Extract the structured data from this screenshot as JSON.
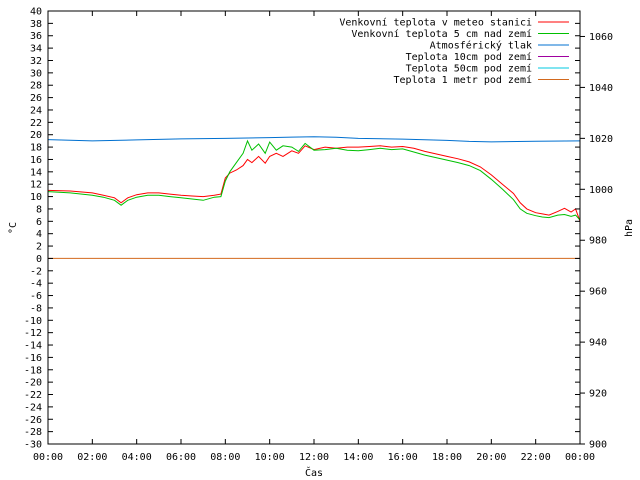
{
  "chart_data": {
    "type": "line",
    "xlabel": "Čas",
    "ylabel_left": "°C",
    "ylabel_right": "hPa",
    "ylim_left": [
      -30,
      40
    ],
    "ylim_right": [
      900,
      1070
    ],
    "yticks_left": [
      40,
      38,
      36,
      34,
      32,
      30,
      28,
      26,
      24,
      22,
      20,
      18,
      16,
      14,
      12,
      10,
      8,
      6,
      4,
      2,
      0,
      -2,
      -4,
      -6,
      -8,
      -10,
      -12,
      -14,
      -16,
      -18,
      -20,
      -22,
      -24,
      -26,
      -28,
      -30
    ],
    "yticks_right": [
      1060,
      1040,
      1020,
      1000,
      980,
      960,
      940,
      920,
      900
    ],
    "xlim_hours": [
      0,
      24
    ],
    "xticks": [
      "00:00",
      "02:00",
      "04:00",
      "06:00",
      "08:00",
      "10:00",
      "12:00",
      "14:00",
      "16:00",
      "18:00",
      "20:00",
      "22:00",
      "00:00"
    ],
    "grid": false,
    "legend_position": "top-right",
    "series": [
      {
        "name": "Venkovní teplota v meteo stanici",
        "color": "#ff0000",
        "axis": "left",
        "hours": [
          0,
          1,
          2,
          2.5,
          3,
          3.3,
          3.6,
          4,
          4.5,
          5,
          5.5,
          6,
          6.5,
          7,
          7.5,
          7.8,
          8,
          8.2,
          8.5,
          8.8,
          9,
          9.2,
          9.5,
          9.8,
          10,
          10.3,
          10.6,
          11,
          11.3,
          11.6,
          12,
          12.5,
          13,
          13.5,
          14,
          14.5,
          15,
          15.5,
          16,
          16.5,
          17,
          17.5,
          18,
          18.5,
          19,
          19.5,
          20,
          20.5,
          21,
          21.3,
          21.6,
          22,
          22.3,
          22.6,
          23,
          23.3,
          23.6,
          23.8,
          24
        ],
        "values": [
          11.0,
          10.9,
          10.6,
          10.2,
          9.8,
          9.0,
          9.8,
          10.3,
          10.6,
          10.6,
          10.4,
          10.2,
          10.1,
          10.0,
          10.2,
          10.4,
          13.0,
          13.8,
          14.3,
          15.0,
          16.0,
          15.5,
          16.5,
          15.4,
          16.5,
          17.0,
          16.5,
          17.4,
          17.0,
          18.2,
          17.6,
          18.0,
          17.8,
          18.0,
          18.0,
          18.1,
          18.2,
          18.0,
          18.1,
          17.8,
          17.3,
          16.9,
          16.5,
          16.1,
          15.6,
          14.8,
          13.5,
          12.0,
          10.5,
          9.0,
          8.0,
          7.4,
          7.2,
          7.0,
          7.6,
          8.1,
          7.5,
          8.0,
          6.0
        ]
      },
      {
        "name": "Venkovní teplota 5 cm nad zemí",
        "color": "#00c000",
        "axis": "left",
        "hours": [
          0,
          1,
          2,
          2.5,
          3,
          3.3,
          3.6,
          4,
          4.5,
          5,
          5.5,
          6,
          6.5,
          7,
          7.5,
          7.8,
          8,
          8.2,
          8.5,
          8.8,
          9,
          9.2,
          9.5,
          9.8,
          10,
          10.3,
          10.6,
          11,
          11.3,
          11.6,
          12,
          12.5,
          13,
          13.5,
          14,
          14.5,
          15,
          15.5,
          16,
          16.5,
          17,
          17.5,
          18,
          18.5,
          19,
          19.5,
          20,
          20.5,
          21,
          21.3,
          21.6,
          22,
          22.3,
          22.6,
          23,
          23.3,
          23.6,
          23.8,
          24
        ],
        "values": [
          10.8,
          10.6,
          10.2,
          9.9,
          9.4,
          8.6,
          9.4,
          9.9,
          10.2,
          10.2,
          10.0,
          9.8,
          9.6,
          9.4,
          9.9,
          10.0,
          12.5,
          14.0,
          15.5,
          17.0,
          19.0,
          17.5,
          18.5,
          17.0,
          18.8,
          17.5,
          18.2,
          18.0,
          17.3,
          18.6,
          17.5,
          17.6,
          17.8,
          17.5,
          17.4,
          17.6,
          17.8,
          17.6,
          17.7,
          17.2,
          16.7,
          16.3,
          15.9,
          15.5,
          15.0,
          14.2,
          12.8,
          11.2,
          9.5,
          8.0,
          7.3,
          6.9,
          6.7,
          6.6,
          7.0,
          7.1,
          6.8,
          7.0,
          6.2
        ]
      },
      {
        "name": "Atmosférický tlak",
        "color": "#0070d0",
        "axis": "right",
        "hours": [
          0,
          2,
          4,
          6,
          8,
          10,
          11,
          12,
          13,
          14,
          16,
          18,
          19,
          20,
          22,
          24
        ],
        "values": [
          1019.5,
          1019.0,
          1019.4,
          1019.8,
          1020.0,
          1020.3,
          1020.5,
          1020.6,
          1020.4,
          1020.0,
          1019.7,
          1019.2,
          1018.8,
          1018.6,
          1018.9,
          1019.0
        ]
      },
      {
        "name": "Teplota 10cm pod zemí",
        "color": "#a000a0",
        "axis": "left",
        "hours": [],
        "values": []
      },
      {
        "name": "Teplota 50cm pod zemí",
        "color": "#00c8e0",
        "axis": "left",
        "hours": [],
        "values": []
      },
      {
        "name": "Teplota 1 metr pod zemí",
        "color": "#d2691e",
        "axis": "left",
        "hours": [
          0,
          24
        ],
        "values": [
          0,
          0
        ]
      }
    ]
  }
}
